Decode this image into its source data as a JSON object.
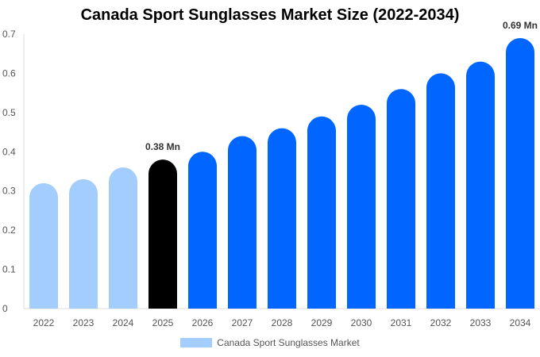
{
  "chart_data": {
    "type": "bar",
    "title": "Canada Sport Sunglasses Market Size (2022-2034)",
    "categories": [
      "2022",
      "2023",
      "2024",
      "2025",
      "2026",
      "2027",
      "2028",
      "2029",
      "2030",
      "2031",
      "2032",
      "2033",
      "2034"
    ],
    "series": [
      {
        "name": "Canada Sport Sunglasses Market",
        "values": [
          0.32,
          0.33,
          0.36,
          0.38,
          0.4,
          0.44,
          0.46,
          0.49,
          0.52,
          0.56,
          0.6,
          0.63,
          0.69
        ]
      }
    ],
    "ylim": [
      0,
      0.7
    ],
    "yticks": [
      "0",
      "0.1",
      "0.2",
      "0.3",
      "0.4",
      "0.5",
      "0.6",
      "0.7"
    ],
    "data_labels": {
      "2025": "0.38 Mn",
      "2034": "0.69 Mn"
    },
    "colors": {
      "historical": "#a3cdfc",
      "current": "#000000",
      "forecast": "#0066ff"
    },
    "grid": false,
    "legend": "bottom"
  }
}
